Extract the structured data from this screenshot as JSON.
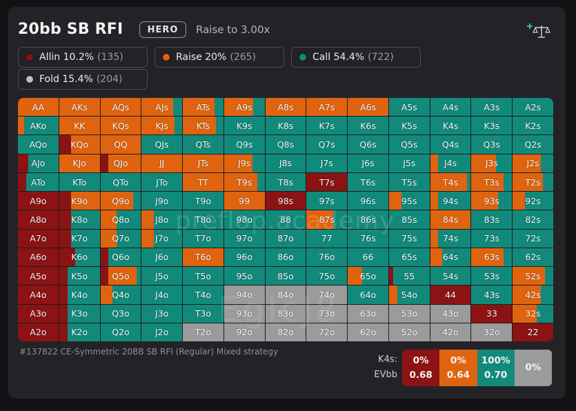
{
  "colors": {
    "allin": "#8b1313",
    "raise": "#e0640f",
    "call": "#128a7b",
    "fold": "#9b9b9b"
  },
  "header": {
    "title": "20bb SB RFI",
    "hero_badge": "HERO",
    "subtitle": "Raise to 3.00x",
    "icon": "add-scale-icon"
  },
  "legend": [
    {
      "label": "Allin 10.2%",
      "count": "(135)",
      "color": "#8b1313"
    },
    {
      "label": "Raise 20%",
      "count": "(265)",
      "color": "#e0640f"
    },
    {
      "label": "Call 54.4%",
      "count": "(722)",
      "color": "#128a7b"
    },
    {
      "label": "Fold 15.4%",
      "count": "(204)",
      "color": "#bdbdbd"
    }
  ],
  "grid": {
    "rows": [
      [
        "AA",
        "AKs",
        "AQs",
        "AJs",
        "ATs",
        "A9s",
        "A8s",
        "A7s",
        "A6s",
        "A5s",
        "A4s",
        "A3s",
        "A2s"
      ],
      [
        "AKo",
        "KK",
        "KQs",
        "KJs",
        "KTs",
        "K9s",
        "K8s",
        "K7s",
        "K6s",
        "K5s",
        "K4s",
        "K3s",
        "K2s"
      ],
      [
        "AQo",
        "KQo",
        "QQ",
        "QJs",
        "QTs",
        "Q9s",
        "Q8s",
        "Q7s",
        "Q6s",
        "Q5s",
        "Q4s",
        "Q3s",
        "Q2s"
      ],
      [
        "AJo",
        "KJo",
        "QJo",
        "JJ",
        "JTs",
        "J9s",
        "J8s",
        "J7s",
        "J6s",
        "J5s",
        "J4s",
        "J3s",
        "J2s"
      ],
      [
        "ATo",
        "KTo",
        "QTo",
        "JTo",
        "TT",
        "T9s",
        "T8s",
        "T7s",
        "T6s",
        "T5s",
        "T4s",
        "T3s",
        "T2s"
      ],
      [
        "A9o",
        "K9o",
        "Q9o",
        "J9o",
        "T9o",
        "99",
        "98s",
        "97s",
        "96s",
        "95s",
        "94s",
        "93s",
        "92s"
      ],
      [
        "A8o",
        "K8o",
        "Q8o",
        "J8o",
        "T8o",
        "98o",
        "88",
        "87s",
        "86s",
        "85s",
        "84s",
        "83s",
        "82s"
      ],
      [
        "A7o",
        "K7o",
        "Q7o",
        "J7o",
        "T7o",
        "97o",
        "87o",
        "77",
        "76s",
        "75s",
        "74s",
        "73s",
        "72s"
      ],
      [
        "A6o",
        "K6o",
        "Q6o",
        "J6o",
        "T6o",
        "96o",
        "86o",
        "76o",
        "66",
        "65s",
        "64s",
        "63s",
        "62s"
      ],
      [
        "A5o",
        "K5o",
        "Q5o",
        "J5o",
        "T5o",
        "95o",
        "85o",
        "75o",
        "65o",
        "55",
        "54s",
        "53s",
        "52s"
      ],
      [
        "A4o",
        "K4o",
        "Q4o",
        "J4o",
        "T4o",
        "94o",
        "84o",
        "74o",
        "64o",
        "54o",
        "44",
        "43s",
        "42s"
      ],
      [
        "A3o",
        "K3o",
        "Q3o",
        "J3o",
        "T3o",
        "93o",
        "83o",
        "73o",
        "63o",
        "53o",
        "43o",
        "33",
        "32s"
      ],
      [
        "A2o",
        "K2o",
        "Q2o",
        "J2o",
        "T2o",
        "92o",
        "82o",
        "72o",
        "62o",
        "52o",
        "42o",
        "32o",
        "22"
      ]
    ],
    "strategies": [
      [
        [
          0,
          100,
          0,
          0
        ],
        [
          0,
          100,
          0,
          0
        ],
        [
          0,
          100,
          0,
          0
        ],
        [
          0,
          78,
          22,
          0
        ],
        [
          0,
          78,
          22,
          0
        ],
        [
          0,
          72,
          28,
          0
        ],
        [
          0,
          100,
          0,
          0
        ],
        [
          0,
          100,
          0,
          0
        ],
        [
          0,
          100,
          0,
          0
        ],
        [
          0,
          0,
          100,
          0
        ],
        [
          0,
          0,
          100,
          0
        ],
        [
          0,
          0,
          100,
          0
        ],
        [
          0,
          0,
          100,
          0
        ]
      ],
      [
        [
          0,
          15,
          85,
          0
        ],
        [
          0,
          100,
          0,
          0
        ],
        [
          0,
          100,
          0,
          0
        ],
        [
          0,
          82,
          18,
          0
        ],
        [
          0,
          82,
          18,
          0
        ],
        [
          0,
          0,
          100,
          0
        ],
        [
          0,
          0,
          100,
          0
        ],
        [
          0,
          0,
          100,
          0
        ],
        [
          0,
          0,
          100,
          0
        ],
        [
          0,
          0,
          100,
          0
        ],
        [
          0,
          0,
          100,
          0
        ],
        [
          0,
          0,
          100,
          0
        ],
        [
          0,
          0,
          100,
          0
        ]
      ],
      [
        [
          0,
          0,
          100,
          0
        ],
        [
          30,
          70,
          0,
          0
        ],
        [
          0,
          100,
          0,
          0
        ],
        [
          0,
          0,
          100,
          0
        ],
        [
          0,
          0,
          100,
          0
        ],
        [
          0,
          0,
          100,
          0
        ],
        [
          0,
          0,
          100,
          0
        ],
        [
          0,
          0,
          100,
          0
        ],
        [
          0,
          0,
          100,
          0
        ],
        [
          0,
          0,
          100,
          0
        ],
        [
          0,
          0,
          100,
          0
        ],
        [
          0,
          0,
          100,
          0
        ],
        [
          0,
          0,
          100,
          0
        ]
      ],
      [
        [
          25,
          0,
          75,
          0
        ],
        [
          0,
          100,
          0,
          0
        ],
        [
          20,
          80,
          0,
          0
        ],
        [
          0,
          100,
          0,
          0
        ],
        [
          0,
          100,
          0,
          0
        ],
        [
          0,
          70,
          30,
          0
        ],
        [
          0,
          0,
          100,
          0
        ],
        [
          0,
          0,
          100,
          0
        ],
        [
          0,
          0,
          100,
          0
        ],
        [
          0,
          0,
          100,
          0
        ],
        [
          0,
          20,
          80,
          0
        ],
        [
          0,
          60,
          40,
          0
        ],
        [
          0,
          70,
          30,
          0
        ]
      ],
      [
        [
          20,
          0,
          80,
          0
        ],
        [
          0,
          0,
          100,
          0
        ],
        [
          0,
          0,
          100,
          0
        ],
        [
          0,
          0,
          100,
          0
        ],
        [
          0,
          100,
          0,
          0
        ],
        [
          0,
          82,
          18,
          0
        ],
        [
          0,
          0,
          100,
          0
        ],
        [
          100,
          0,
          0,
          0
        ],
        [
          0,
          0,
          100,
          0
        ],
        [
          0,
          0,
          100,
          0
        ],
        [
          0,
          90,
          10,
          0
        ],
        [
          0,
          80,
          20,
          0
        ],
        [
          0,
          75,
          25,
          0
        ]
      ],
      [
        [
          100,
          0,
          0,
          0
        ],
        [
          30,
          70,
          0,
          0
        ],
        [
          0,
          80,
          20,
          0
        ],
        [
          0,
          0,
          100,
          0
        ],
        [
          0,
          0,
          100,
          0
        ],
        [
          0,
          100,
          0,
          0
        ],
        [
          100,
          0,
          0,
          0
        ],
        [
          0,
          0,
          100,
          0
        ],
        [
          0,
          0,
          100,
          0
        ],
        [
          0,
          30,
          70,
          0
        ],
        [
          0,
          20,
          80,
          0
        ],
        [
          0,
          65,
          35,
          0
        ],
        [
          0,
          30,
          70,
          0
        ]
      ],
      [
        [
          100,
          0,
          0,
          0
        ],
        [
          30,
          0,
          70,
          0
        ],
        [
          0,
          40,
          60,
          0
        ],
        [
          0,
          30,
          70,
          0
        ],
        [
          0,
          0,
          100,
          0
        ],
        [
          0,
          0,
          100,
          0
        ],
        [
          0,
          0,
          100,
          0
        ],
        [
          0,
          65,
          35,
          0
        ],
        [
          0,
          0,
          100,
          0
        ],
        [
          0,
          0,
          100,
          0
        ],
        [
          0,
          100,
          0,
          0
        ],
        [
          0,
          0,
          100,
          0
        ],
        [
          0,
          0,
          100,
          0
        ]
      ],
      [
        [
          100,
          0,
          0,
          0
        ],
        [
          30,
          0,
          70,
          0
        ],
        [
          0,
          40,
          60,
          0
        ],
        [
          0,
          30,
          70,
          0
        ],
        [
          0,
          0,
          100,
          0
        ],
        [
          0,
          0,
          100,
          0
        ],
        [
          0,
          0,
          100,
          0
        ],
        [
          0,
          0,
          100,
          0
        ],
        [
          0,
          0,
          100,
          0
        ],
        [
          0,
          0,
          100,
          0
        ],
        [
          0,
          20,
          80,
          0
        ],
        [
          0,
          0,
          100,
          0
        ],
        [
          0,
          0,
          100,
          0
        ]
      ],
      [
        [
          100,
          0,
          0,
          0
        ],
        [
          40,
          0,
          60,
          0
        ],
        [
          20,
          0,
          80,
          0
        ],
        [
          0,
          0,
          100,
          0
        ],
        [
          0,
          100,
          0,
          0
        ],
        [
          0,
          0,
          100,
          0
        ],
        [
          0,
          0,
          100,
          0
        ],
        [
          0,
          0,
          100,
          0
        ],
        [
          0,
          0,
          100,
          0
        ],
        [
          0,
          0,
          100,
          0
        ],
        [
          0,
          30,
          70,
          0
        ],
        [
          0,
          80,
          20,
          0
        ],
        [
          0,
          0,
          100,
          0
        ]
      ],
      [
        [
          100,
          0,
          0,
          0
        ],
        [
          20,
          0,
          80,
          0
        ],
        [
          20,
          70,
          10,
          0
        ],
        [
          0,
          0,
          100,
          0
        ],
        [
          0,
          0,
          100,
          0
        ],
        [
          0,
          0,
          100,
          0
        ],
        [
          0,
          0,
          100,
          0
        ],
        [
          0,
          0,
          100,
          0
        ],
        [
          0,
          35,
          65,
          0
        ],
        [
          10,
          0,
          90,
          0
        ],
        [
          0,
          0,
          100,
          0
        ],
        [
          0,
          0,
          100,
          0
        ],
        [
          0,
          80,
          20,
          0
        ]
      ],
      [
        [
          100,
          0,
          0,
          0
        ],
        [
          20,
          0,
          80,
          0
        ],
        [
          0,
          30,
          70,
          0
        ],
        [
          0,
          0,
          100,
          0
        ],
        [
          0,
          0,
          100,
          0
        ],
        [
          0,
          0,
          0,
          100
        ],
        [
          0,
          0,
          0,
          100
        ],
        [
          0,
          0,
          0,
          100
        ],
        [
          0,
          0,
          100,
          0
        ],
        [
          0,
          20,
          80,
          0
        ],
        [
          100,
          0,
          0,
          0
        ],
        [
          0,
          0,
          100,
          0
        ],
        [
          0,
          70,
          30,
          0
        ]
      ],
      [
        [
          100,
          0,
          0,
          0
        ],
        [
          20,
          0,
          80,
          0
        ],
        [
          0,
          0,
          100,
          0
        ],
        [
          0,
          0,
          100,
          0
        ],
        [
          0,
          0,
          100,
          0
        ],
        [
          0,
          0,
          0,
          100
        ],
        [
          0,
          0,
          0,
          100
        ],
        [
          0,
          0,
          0,
          100
        ],
        [
          0,
          0,
          0,
          100
        ],
        [
          0,
          0,
          0,
          100
        ],
        [
          0,
          0,
          0,
          100
        ],
        [
          100,
          0,
          0,
          0
        ],
        [
          0,
          60,
          40,
          0
        ]
      ],
      [
        [
          100,
          0,
          0,
          0
        ],
        [
          20,
          0,
          80,
          0
        ],
        [
          0,
          0,
          100,
          0
        ],
        [
          0,
          0,
          100,
          0
        ],
        [
          0,
          0,
          0,
          100
        ],
        [
          0,
          0,
          0,
          100
        ],
        [
          0,
          0,
          0,
          100
        ],
        [
          0,
          0,
          0,
          100
        ],
        [
          0,
          0,
          0,
          100
        ],
        [
          0,
          0,
          0,
          100
        ],
        [
          0,
          0,
          0,
          100
        ],
        [
          0,
          0,
          0,
          100
        ],
        [
          100,
          0,
          0,
          0
        ]
      ]
    ],
    "selected": "K4s"
  },
  "watermark": {
    "site": "preflop.academy",
    "code": "EgIcJ8"
  },
  "footer": "#137822 CE-Symmetric 20BB SB RFI (Regular) Mixed strategy",
  "detail": {
    "hand_label": "K4s:",
    "ev_label": "EVbb",
    "stats": [
      {
        "pct": "0%",
        "ev": "0.68",
        "color": "#8b1313"
      },
      {
        "pct": "0%",
        "ev": "0.64",
        "color": "#e0640f"
      },
      {
        "pct": "100%",
        "ev": "0.70",
        "color": "#128a7b"
      },
      {
        "pct": "0%",
        "ev": "",
        "color": "#9b9b9b"
      }
    ]
  }
}
